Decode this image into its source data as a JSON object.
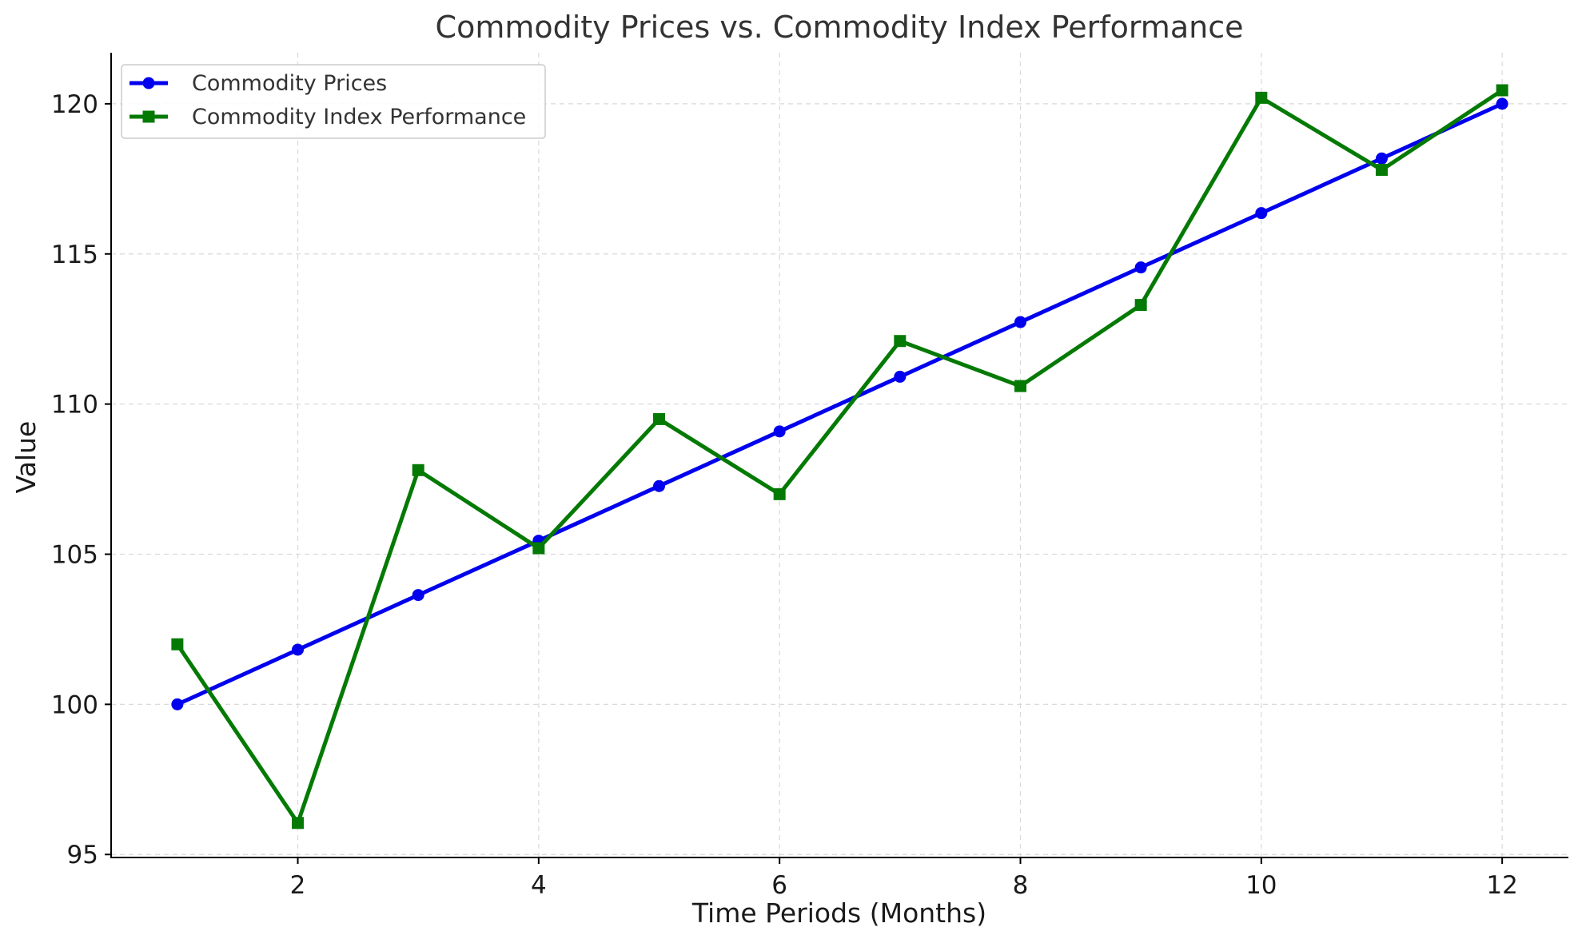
{
  "chart_data": {
    "type": "line",
    "title": "Commodity Prices vs. Commodity Index Performance",
    "xlabel": "Time Periods (Months)",
    "ylabel": "Value",
    "x": [
      1,
      2,
      3,
      4,
      5,
      6,
      7,
      8,
      9,
      10,
      11,
      12
    ],
    "xlim": [
      0.45,
      12.55
    ],
    "ylim": [
      94.9,
      121.7
    ],
    "xticks": [
      2,
      4,
      6,
      8,
      10,
      12
    ],
    "yticks": [
      95,
      100,
      105,
      110,
      115,
      120
    ],
    "grid": true,
    "legend_position": "top-left",
    "series": [
      {
        "name": "Commodity Prices",
        "color": "#0000ee",
        "marker": "circle",
        "values": [
          100.0,
          101.82,
          103.64,
          105.45,
          107.27,
          109.09,
          110.91,
          112.73,
          114.55,
          116.36,
          118.18,
          120.0
        ]
      },
      {
        "name": "Commodity Index Performance",
        "color": "#047a04",
        "marker": "square",
        "values": [
          102.0,
          96.05,
          107.8,
          105.2,
          109.5,
          107.0,
          112.1,
          110.6,
          113.3,
          120.2,
          117.8,
          120.45
        ]
      }
    ]
  }
}
